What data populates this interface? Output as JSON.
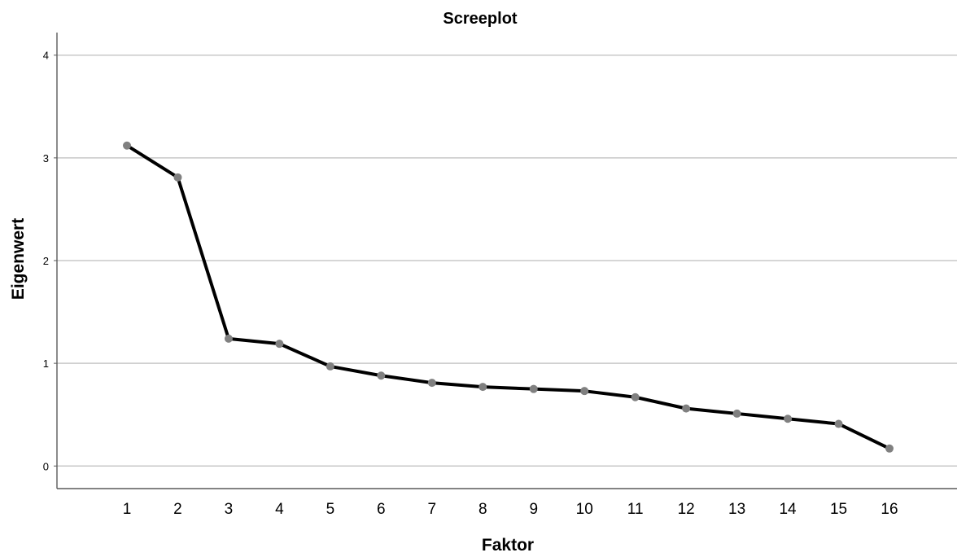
{
  "chart_data": {
    "type": "line",
    "title": "Screeplot",
    "xlabel": "Faktor",
    "ylabel": "Eigenwert",
    "categories": [
      "1",
      "2",
      "3",
      "4",
      "5",
      "6",
      "7",
      "8",
      "9",
      "10",
      "11",
      "12",
      "13",
      "14",
      "15",
      "16"
    ],
    "series": [
      {
        "values": [
          3.12,
          2.81,
          1.24,
          1.19,
          0.97,
          0.88,
          0.81,
          0.77,
          0.75,
          0.73,
          0.67,
          0.56,
          0.51,
          0.46,
          0.41,
          0.17
        ]
      }
    ],
    "ylim": [
      -0.22,
      4.22
    ],
    "yticks": [
      "0",
      "1",
      "2",
      "3",
      "4"
    ],
    "grid": true,
    "legend": "none",
    "colors": {
      "line": "#000000",
      "marker": "#808080",
      "grid": "#c8c8c8",
      "axis": "#5a5a5a"
    }
  }
}
